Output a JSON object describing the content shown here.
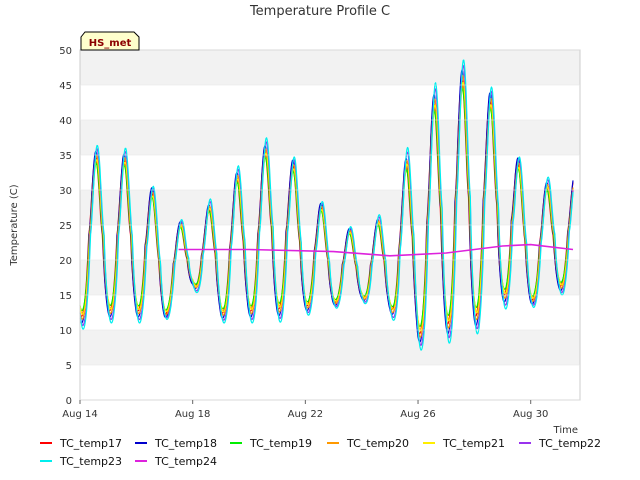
{
  "chart_data": {
    "type": "line",
    "title": "Temperature Profile C",
    "xlabel": "Time",
    "ylabel": "Temperature (C)",
    "badge": "HS_met",
    "xlim": [
      "2023-08-14",
      "2023-08-31T18:00"
    ],
    "ylim": [
      0,
      50
    ],
    "yticks": [
      0,
      5,
      10,
      15,
      20,
      25,
      30,
      35,
      40,
      45,
      50
    ],
    "xticks": [
      {
        "date": "2023-08-14",
        "label": "Aug 14"
      },
      {
        "date": "2023-08-18",
        "label": "Aug 18"
      },
      {
        "date": "2023-08-22",
        "label": "Aug 22"
      },
      {
        "date": "2023-08-26",
        "label": "Aug 26"
      },
      {
        "date": "2023-08-30",
        "label": "Aug 30"
      }
    ],
    "grid": "horizontal bands",
    "legend_position": "bottom",
    "daily_profile": [
      {
        "date": "2023-08-14",
        "min": 10,
        "max": 37
      },
      {
        "date": "2023-08-15",
        "min": 11,
        "max": 36
      },
      {
        "date": "2023-08-16",
        "min": 11,
        "max": 36
      },
      {
        "date": "2023-08-17",
        "min": 11,
        "max": 27
      },
      {
        "date": "2023-08-18",
        "min": 16,
        "max": 25
      },
      {
        "date": "2023-08-19",
        "min": 11,
        "max": 31
      },
      {
        "date": "2023-08-20",
        "min": 11,
        "max": 35
      },
      {
        "date": "2023-08-21",
        "min": 11,
        "max": 39
      },
      {
        "date": "2023-08-22",
        "min": 12,
        "max": 32
      },
      {
        "date": "2023-08-23",
        "min": 13,
        "max": 26
      },
      {
        "date": "2023-08-24",
        "min": 14,
        "max": 24
      },
      {
        "date": "2023-08-25",
        "min": 12,
        "max": 28
      },
      {
        "date": "2023-08-26",
        "min": 7,
        "max": 41
      },
      {
        "date": "2023-08-27",
        "min": 8,
        "max": 48
      },
      {
        "date": "2023-08-28",
        "min": 9,
        "max": 49
      },
      {
        "date": "2023-08-29",
        "min": 13,
        "max": 42
      },
      {
        "date": "2023-08-30",
        "min": 13,
        "max": 30
      },
      {
        "date": "2023-08-31",
        "min": 15,
        "max": 33
      }
    ],
    "series": [
      {
        "name": "TC_temp17",
        "color": "#ff0000",
        "amplitude": 0.86
      },
      {
        "name": "TC_temp18",
        "color": "#0000cc",
        "amplitude": 0.93
      },
      {
        "name": "TC_temp19",
        "color": "#00ee00",
        "amplitude": 0.8
      },
      {
        "name": "TC_temp20",
        "color": "#ff9900",
        "amplitude": 0.89
      },
      {
        "name": "TC_temp21",
        "color": "#ffee00",
        "amplitude": 0.84
      },
      {
        "name": "TC_temp22",
        "color": "#9933ee",
        "amplitude": 0.96
      },
      {
        "name": "TC_temp23",
        "color": "#00eeee",
        "amplitude": 1.0
      },
      {
        "name": "TC_temp24",
        "color": "#dd22dd",
        "values": [
          {
            "date": "2023-08-17T12:00",
            "value": 21.5
          },
          {
            "date": "2023-08-20",
            "value": 21.5
          },
          {
            "date": "2023-08-23",
            "value": 21.2
          },
          {
            "date": "2023-08-25",
            "value": 20.6
          },
          {
            "date": "2023-08-27",
            "value": 21.0
          },
          {
            "date": "2023-08-29",
            "value": 22.0
          },
          {
            "date": "2023-08-30",
            "value": 22.2
          },
          {
            "date": "2023-08-31T12:00",
            "value": 21.5
          }
        ]
      }
    ]
  }
}
